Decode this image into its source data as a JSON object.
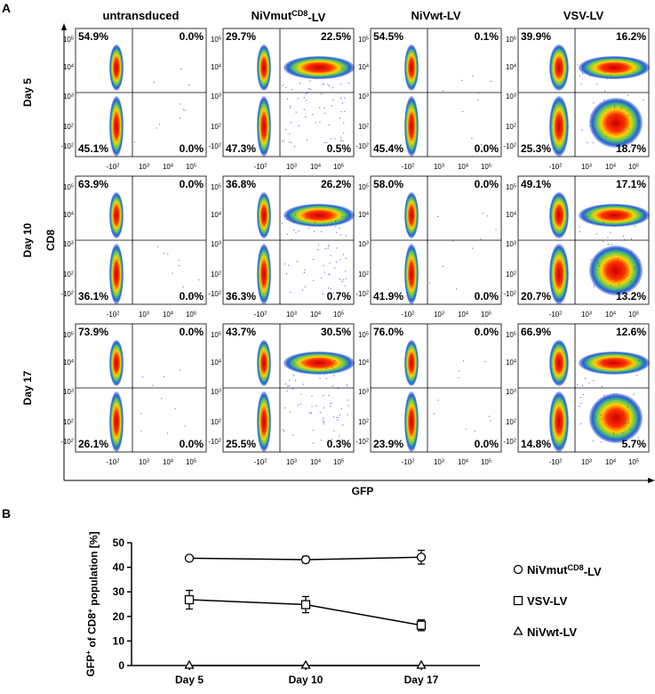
{
  "chart_data": [
    {
      "type": "flow-grid",
      "panel_label": "A",
      "columns": [
        [
          {
            "text": "untransduced"
          }
        ],
        [
          {
            "text": "NiVmut"
          },
          {
            "text": "CD8",
            "sup": true
          },
          {
            "text": "-LV"
          }
        ],
        [
          {
            "text": "NiVwt-LV"
          }
        ],
        [
          {
            "text": "VSV-LV"
          }
        ]
      ],
      "rows": [
        "Day 5",
        "Day 10",
        "Day 17"
      ],
      "xlabel": "GFP",
      "ylabel": "CD8",
      "xtick_labels": [
        [
          {
            "text": "-10"
          },
          {
            "text": "2",
            "sup": true
          }
        ],
        [
          {
            "text": "10"
          },
          {
            "text": "3",
            "sup": true
          }
        ],
        [
          {
            "text": "10"
          },
          {
            "text": "4",
            "sup": true
          }
        ],
        [
          {
            "text": "10"
          },
          {
            "text": "5",
            "sup": true
          }
        ]
      ],
      "ytick_labels": [
        [
          {
            "text": "10"
          },
          {
            "text": "5",
            "sup": true
          }
        ],
        [
          {
            "text": "10"
          },
          {
            "text": "4",
            "sup": true
          }
        ],
        [
          {
            "text": "10"
          },
          {
            "text": "3",
            "sup": true
          }
        ],
        [
          {
            "text": "10"
          },
          {
            "text": "2",
            "sup": true
          }
        ],
        [
          {
            "text": "-10"
          },
          {
            "text": "2",
            "sup": true
          }
        ]
      ],
      "quadrants": [
        [
          [
            "54.9%",
            "0.0%",
            "45.1%",
            "0.0%"
          ],
          [
            "29.7%",
            "22.5%",
            "47.3%",
            "0.5%"
          ],
          [
            "54.5%",
            "0.1%",
            "45.4%",
            "0.0%"
          ],
          [
            "39.9%",
            "16.2%",
            "25.3%",
            "18.7%"
          ]
        ],
        [
          [
            "63.9%",
            "0.0%",
            "36.1%",
            "0.0%"
          ],
          [
            "36.8%",
            "26.2%",
            "36.3%",
            "0.7%"
          ],
          [
            "58.0%",
            "0.0%",
            "41.9%",
            "0.0%"
          ],
          [
            "49.1%",
            "17.1%",
            "20.7%",
            "13.2%"
          ]
        ],
        [
          [
            "73.9%",
            "0.0%",
            "26.1%",
            "0.0%"
          ],
          [
            "43.7%",
            "30.5%",
            "25.5%",
            "0.3%"
          ],
          [
            "76.0%",
            "0.0%",
            "23.9%",
            "0.0%"
          ],
          [
            "66.9%",
            "12.6%",
            "14.8%",
            "5.7%"
          ]
        ]
      ]
    },
    {
      "type": "line",
      "panel_label": "B",
      "ylabel": [
        {
          "text": "GFP"
        },
        {
          "text": "+",
          "sup": true
        },
        {
          "text": " of CD8"
        },
        {
          "text": "+",
          "sup": true
        },
        {
          "text": " population [%]"
        }
      ],
      "categories": [
        "Day 5",
        "Day 10",
        "Day 17"
      ],
      "ylim": [
        0,
        50
      ],
      "yticks": [
        0,
        10,
        20,
        30,
        40,
        50
      ],
      "series": [
        {
          "name": [
            {
              "text": "NiVmut"
            },
            {
              "text": "CD8",
              "sup": true
            },
            {
              "text": "-LV"
            }
          ],
          "color": "#000000",
          "marker": "circle",
          "values": [
            43.7,
            43.1,
            44.1
          ],
          "errors": [
            0.5,
            1.3,
            2.8
          ]
        },
        {
          "name": [
            {
              "text": "VSV-LV"
            }
          ],
          "color": "#000000",
          "marker": "square",
          "values": [
            26.8,
            24.8,
            16.4
          ],
          "errors": [
            3.8,
            3.3,
            2.2
          ]
        },
        {
          "name": [
            {
              "text": "NiVwt-LV"
            }
          ],
          "color": "#000000",
          "marker": "triangle",
          "values": [
            0,
            0,
            0
          ]
        }
      ]
    }
  ]
}
